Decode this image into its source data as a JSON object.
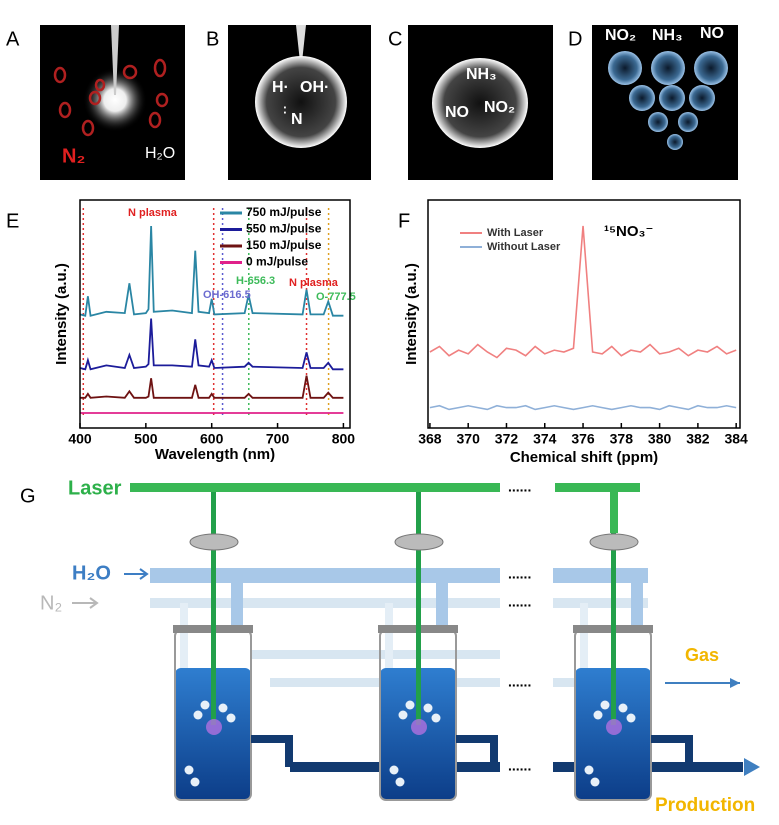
{
  "panel_labels": [
    "A",
    "B",
    "C",
    "D",
    "E",
    "F",
    "G"
  ],
  "panel_a": {
    "texts": [
      "N₂",
      "H₂O"
    ]
  },
  "panel_b": {
    "texts": [
      "H·",
      "OH·",
      "N"
    ]
  },
  "panel_c": {
    "texts": [
      "NH₃",
      "NO",
      "NO₂"
    ]
  },
  "panel_d": {
    "texts": [
      "NO₂",
      "NH₃",
      "NO"
    ]
  },
  "chart_data": [
    {
      "type": "line",
      "xlabel": "Wavelength (nm)",
      "ylabel": "Intensity (a.u.)",
      "xlim": [
        400,
        810
      ],
      "xticks": [
        400,
        500,
        600,
        700,
        800
      ],
      "legend": "upper right",
      "x": [
        400,
        408,
        412,
        416,
        440,
        468,
        475,
        482,
        500,
        504,
        508,
        512,
        540,
        570,
        575,
        580,
        596,
        600,
        604,
        650,
        656,
        662,
        738,
        744,
        750,
        770,
        777,
        784,
        800
      ],
      "series": [
        {
          "name": "750 mJ/pulse",
          "color": "#2a86a4",
          "values": [
            12,
            11,
            26,
            11,
            14,
            13,
            36,
            12,
            13,
            16,
            80,
            14,
            15,
            13,
            61,
            14,
            13,
            24,
            12,
            13,
            27,
            13,
            12,
            31,
            12,
            12,
            22,
            11,
            11
          ]
        },
        {
          "name": "550 mJ/pulse",
          "color": "#1c1c9a",
          "values": [
            10,
            9,
            16,
            9,
            12,
            10,
            20,
            10,
            11,
            13,
            48,
            12,
            12,
            11,
            32,
            12,
            11,
            16,
            10,
            11,
            14,
            11,
            10,
            22,
            10,
            10,
            14,
            9,
            9
          ]
        },
        {
          "name": "150 mJ/pulse",
          "color": "#6e1212",
          "values": [
            4,
            4,
            7,
            4,
            5,
            4,
            9,
            4,
            4,
            5,
            19,
            4,
            4,
            4,
            14,
            4,
            4,
            7,
            4,
            4,
            7,
            4,
            4,
            21,
            4,
            4,
            8,
            4,
            4
          ]
        },
        {
          "name": "0 mJ/pulse",
          "color": "#e0208a",
          "values": [
            0,
            0,
            0,
            0,
            0,
            0,
            0,
            0,
            0,
            0,
            0,
            0,
            0,
            0,
            0,
            0,
            0,
            0,
            0,
            0,
            0,
            0,
            0,
            0,
            0,
            0,
            0,
            0,
            0
          ]
        }
      ],
      "markers": [
        {
          "x": 405,
          "color": "#e03030"
        },
        {
          "x": 603,
          "color": "#e03030"
        },
        {
          "x": 616.5,
          "color": "#5b5bd0"
        },
        {
          "x": 656.3,
          "color": "#3dbb5a"
        },
        {
          "x": 744,
          "color": "#e03030"
        },
        {
          "x": 777.5,
          "color": "#e0a020"
        }
      ],
      "annotations": [
        {
          "text": "N plasma",
          "color": "#e02020"
        },
        {
          "text": "OH-616.5",
          "color": "#6b6bd0"
        },
        {
          "text": "H-656.3",
          "color": "#3dbb5a"
        },
        {
          "text": "N plasma",
          "color": "#e02020"
        },
        {
          "text": "O-777.5",
          "color": "#3dbb5a"
        }
      ]
    },
    {
      "type": "line",
      "xlabel": "Chemical shift (ppm)",
      "ylabel": "Intensity (a.u.)",
      "xlim": [
        367.9,
        384.2
      ],
      "ylim": [
        -11,
        112
      ],
      "xticks": [
        368,
        370,
        372,
        374,
        376,
        378,
        380,
        382,
        384
      ],
      "legend": "upper left",
      "x": [
        368,
        368.5,
        369,
        369.5,
        370,
        370.5,
        371,
        371.5,
        372,
        372.5,
        373,
        373.5,
        374,
        374.5,
        375,
        375.5,
        376,
        376.5,
        377,
        377.5,
        378,
        378.5,
        379,
        379.5,
        380,
        380.5,
        381,
        381.5,
        382,
        382.5,
        383,
        383.5,
        384
      ],
      "series": [
        {
          "name": "With Laser",
          "color": "#f08080",
          "values": [
            30,
            33,
            28,
            31,
            29,
            34,
            30,
            27,
            32,
            31,
            28,
            33,
            29,
            31,
            30,
            32,
            98,
            30,
            29,
            33,
            28,
            31,
            30,
            34,
            29,
            30,
            32,
            28,
            31,
            30,
            33,
            29,
            31
          ]
        },
        {
          "name": "Without Laser",
          "color": "#8fb0d8",
          "values": [
            0,
            1,
            -1,
            0,
            1,
            0,
            -1,
            1,
            0,
            0,
            1,
            -1,
            0,
            1,
            0,
            -1,
            0,
            1,
            0,
            -1,
            0,
            1,
            0,
            0,
            -1,
            1,
            0,
            -1,
            1,
            0,
            0,
            1,
            0
          ]
        }
      ],
      "annotations": [
        {
          "text": "¹⁵NO₃⁻",
          "color": "#000000"
        }
      ]
    }
  ],
  "diagram": {
    "laser": "Laser",
    "h2o": "H₂O",
    "n2": "N₂",
    "gas": "Gas",
    "production": "Production",
    "ellipsis": "......"
  }
}
